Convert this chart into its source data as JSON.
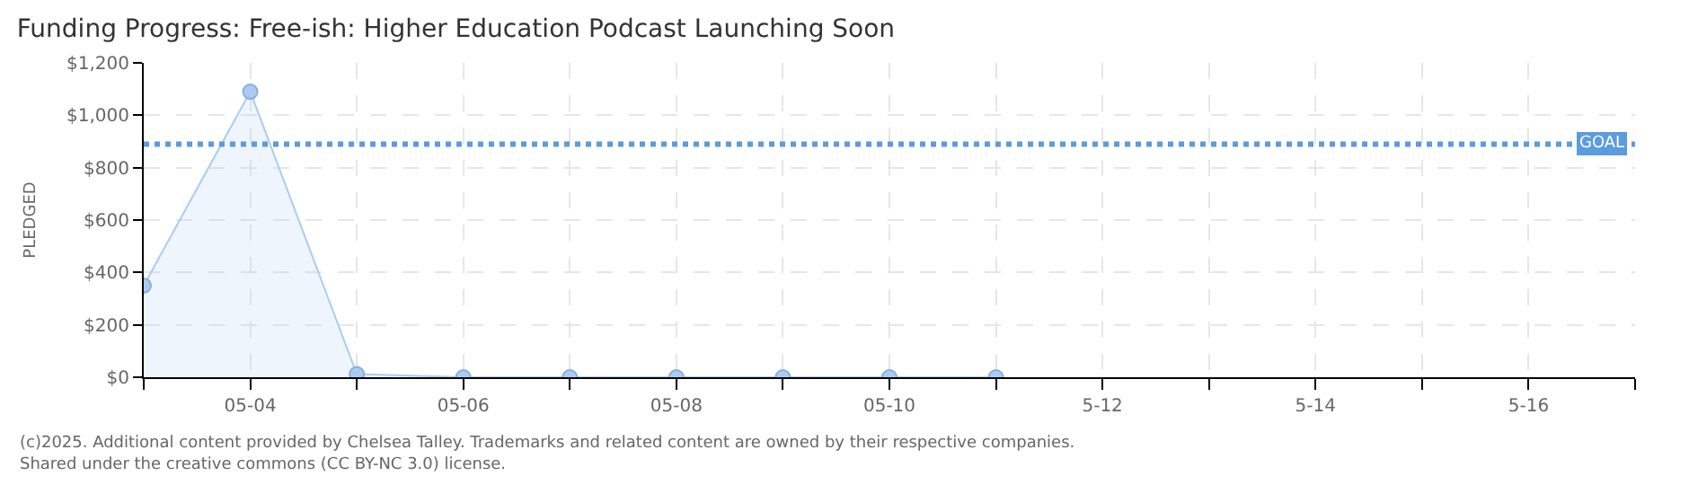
{
  "chart_data": {
    "type": "area",
    "title": "Funding Progress: Free-ish: Higher Education Podcast Launching Soon",
    "ylabel": "PLEDGED",
    "x": [
      "--05-03",
      "--05-04",
      "--05-05",
      "--05-06",
      "--05-07",
      "--05-08",
      "--05-09",
      "--05-10",
      "--05-11"
    ],
    "series": [
      {
        "color": "#a9cdf2",
        "values": [
          350,
          1090,
          12,
          0,
          0,
          0,
          0,
          0,
          0
        ]
      }
    ],
    "marker": "circle",
    "xlim": [
      "--05-03",
      "--05-17"
    ],
    "xticks": [
      {
        "value": "--05-03",
        "label": null
      },
      {
        "value": "--05-04",
        "label": "05-04"
      },
      {
        "value": "--05-05",
        "label": null
      },
      {
        "value": "--05-06",
        "label": "05-06"
      },
      {
        "value": "--05-07",
        "label": null
      },
      {
        "value": "--05-08",
        "label": "05-08"
      },
      {
        "value": "--05-09",
        "label": null
      },
      {
        "value": "--05-10",
        "label": "05-10"
      },
      {
        "value": "--05-11",
        "label": null
      },
      {
        "value": "--05-12",
        "label": "5-12"
      },
      {
        "value": "--05-13",
        "label": null
      },
      {
        "value": "--05-14",
        "label": "5-14"
      },
      {
        "value": "--05-15",
        "label": null
      },
      {
        "value": "--05-16",
        "label": "5-16"
      },
      {
        "value": "--05-17",
        "label": null
      }
    ],
    "ylim": [
      0,
      1200
    ],
    "yticks": [
      {
        "value": 0,
        "label": "$0"
      },
      {
        "value": 200,
        "label": "$200"
      },
      {
        "value": 400,
        "label": "$400"
      },
      {
        "value": 600,
        "label": "$600"
      },
      {
        "value": 800,
        "label": "$800"
      },
      {
        "value": 1000,
        "label": "$1,000"
      },
      {
        "value": 1200,
        "label": "$1,200"
      }
    ],
    "grid": true,
    "ref_lines": [
      {
        "axis": "y",
        "value": 890,
        "label": "GOAL",
        "color": "#5b9be0",
        "line_style": "dotted"
      }
    ],
    "annotations": [
      "(c)2025. Additional content provided by Chelsea Talley. Trademarks and related content are owned by their respective companies.",
      "Shared under the creative commons (CC BY-NC 3.0) license."
    ]
  }
}
